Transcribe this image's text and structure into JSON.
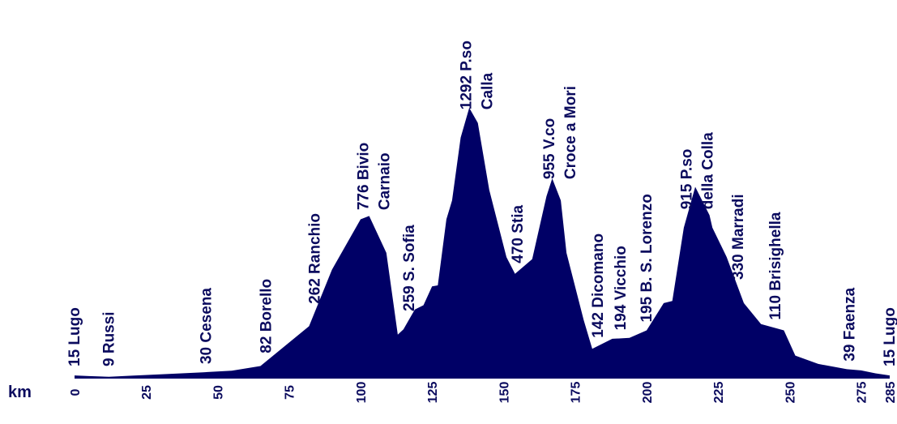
{
  "chart_data": {
    "type": "area",
    "xlabel": "km",
    "xlim": [
      0,
      285
    ],
    "x_ticks": [
      0,
      25,
      50,
      75,
      100,
      125,
      150,
      175,
      200,
      225,
      250,
      275,
      285
    ],
    "fill_color": "#000066",
    "profile": [
      [
        0,
        15
      ],
      [
        5,
        12
      ],
      [
        12,
        9
      ],
      [
        20,
        14
      ],
      [
        30,
        20
      ],
      [
        45,
        30
      ],
      [
        55,
        38
      ],
      [
        65,
        60
      ],
      [
        82,
        250
      ],
      [
        90,
        520
      ],
      [
        100,
        760
      ],
      [
        103,
        776
      ],
      [
        109,
        600
      ],
      [
        113,
        210
      ],
      [
        115,
        235
      ],
      [
        119,
        330
      ],
      [
        122,
        350
      ],
      [
        125,
        440
      ],
      [
        127,
        445
      ],
      [
        130,
        760
      ],
      [
        132,
        850
      ],
      [
        135,
        1150
      ],
      [
        138,
        1292
      ],
      [
        141,
        1220
      ],
      [
        145,
        900
      ],
      [
        151,
        580
      ],
      [
        154,
        500
      ],
      [
        160,
        570
      ],
      [
        165,
        870
      ],
      [
        167,
        955
      ],
      [
        170,
        850
      ],
      [
        172,
        600
      ],
      [
        178,
        280
      ],
      [
        181,
        142
      ],
      [
        188,
        190
      ],
      [
        194,
        194
      ],
      [
        200,
        230
      ],
      [
        206,
        360
      ],
      [
        209,
        370
      ],
      [
        213,
        720
      ],
      [
        217,
        915
      ],
      [
        222,
        780
      ],
      [
        223,
        720
      ],
      [
        228,
        580
      ],
      [
        234,
        360
      ],
      [
        240,
        260
      ],
      [
        248,
        230
      ],
      [
        252,
        110
      ],
      [
        260,
        70
      ],
      [
        270,
        45
      ],
      [
        275,
        39
      ],
      [
        280,
        25
      ],
      [
        285,
        15
      ]
    ],
    "labels": [
      {
        "km": 0,
        "lines": [
          "15 Lugo"
        ]
      },
      {
        "km": 12,
        "lines": [
          "9 Russi"
        ]
      },
      {
        "km": 46,
        "lines": [
          "30 Cesena"
        ]
      },
      {
        "km": 67,
        "lines": [
          "82 Borello"
        ]
      },
      {
        "km": 84,
        "lines": [
          "262 Ranchio"
        ]
      },
      {
        "km": 101,
        "lines": [
          "776 Bivio",
          "Carnaio"
        ]
      },
      {
        "km": 117,
        "lines": [
          "259 S. Sofia"
        ]
      },
      {
        "km": 137,
        "lines": [
          "1292 P.so",
          "Calla"
        ]
      },
      {
        "km": 155,
        "lines": [
          "470 Stia"
        ]
      },
      {
        "km": 166,
        "lines": [
          "955 V.co",
          "Croce a Mori"
        ]
      },
      {
        "km": 183,
        "lines": [
          "142 Dicomano"
        ]
      },
      {
        "km": 191,
        "lines": [
          "194 Vicchio"
        ]
      },
      {
        "km": 200,
        "lines": [
          "195 B. S. Lorenzo"
        ]
      },
      {
        "km": 214,
        "lines": [
          "915 P.so",
          "della  Colla"
        ]
      },
      {
        "km": 232,
        "lines": [
          "330 Marradi"
        ]
      },
      {
        "km": 245,
        "lines": [
          "110 Brisighella"
        ]
      },
      {
        "km": 271,
        "lines": [
          "39 Faenza"
        ]
      },
      {
        "km": 285,
        "lines": [
          "15 Lugo"
        ]
      }
    ]
  }
}
